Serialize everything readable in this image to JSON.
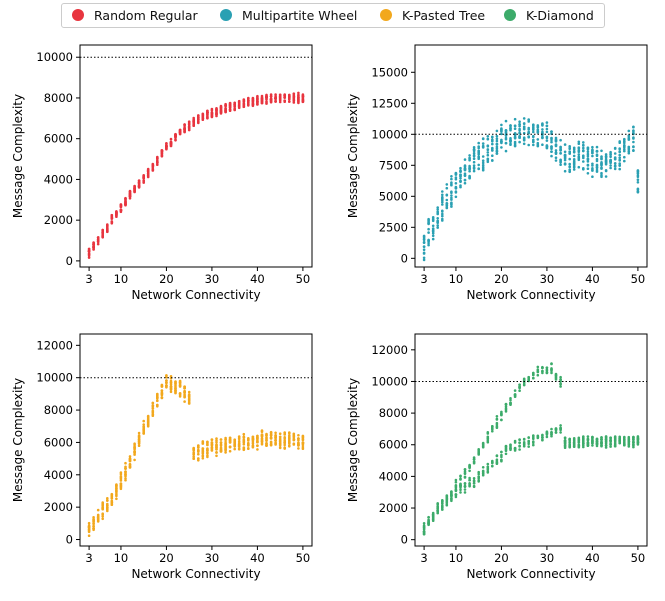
{
  "legend": [
    {
      "label": "Random Regular",
      "color": "#e8353f"
    },
    {
      "label": "Multipartite Wheel",
      "color": "#2aa0b3"
    },
    {
      "label": "K-Pasted Tree",
      "color": "#f2a81d"
    },
    {
      "label": "K-Diamond",
      "color": "#3cab6a"
    }
  ],
  "chart_data": [
    {
      "type": "scatter",
      "series_name": "Random Regular",
      "color": "#e8353f",
      "xlabel": "Network Connectivity",
      "ylabel": "Message Complexity",
      "xticks": [
        3,
        10,
        20,
        30,
        40,
        50
      ],
      "yticks": [
        0,
        2000,
        4000,
        6000,
        8000,
        10000
      ],
      "xlim": [
        1,
        52
      ],
      "ylim": [
        -300,
        10600
      ],
      "reference_line": 10000,
      "trend": [
        [
          3,
          400
        ],
        [
          5,
          1000
        ],
        [
          8,
          2000
        ],
        [
          12,
          3200
        ],
        [
          16,
          4300
        ],
        [
          20,
          5600
        ],
        [
          24,
          6500
        ],
        [
          28,
          7100
        ],
        [
          33,
          7500
        ],
        [
          38,
          7800
        ],
        [
          44,
          8000
        ],
        [
          50,
          8000
        ]
      ],
      "spread": 250
    },
    {
      "type": "scatter",
      "series_name": "Multipartite Wheel",
      "color": "#2aa0b3",
      "xlabel": "Network Connectivity",
      "ylabel": "Message Complexity",
      "xticks": [
        3,
        10,
        20,
        30,
        40,
        50
      ],
      "yticks": [
        0,
        2500,
        5000,
        7500,
        10000,
        12500,
        15000
      ],
      "xlim": [
        1,
        52
      ],
      "ylim": [
        -700,
        17200
      ],
      "reference_line": 10000,
      "trend": [
        [
          3,
          1000
        ],
        [
          6,
          3500
        ],
        [
          10,
          6000
        ],
        [
          14,
          7800
        ],
        [
          18,
          9000
        ],
        [
          22,
          10000
        ],
        [
          26,
          10200
        ],
        [
          30,
          9800
        ],
        [
          34,
          8200
        ],
        [
          38,
          8200
        ],
        [
          42,
          7600
        ],
        [
          46,
          8500
        ],
        [
          49,
          9400
        ],
        [
          50,
          6200
        ]
      ],
      "spread": 1400
    },
    {
      "type": "scatter",
      "series_name": "K-Pasted Tree",
      "color": "#f2a81d",
      "xlabel": "Network Connectivity",
      "ylabel": "Message Complexity",
      "xticks": [
        3,
        10,
        20,
        30,
        40,
        50
      ],
      "yticks": [
        0,
        2000,
        4000,
        6000,
        8000,
        10000,
        12000
      ],
      "xlim": [
        1,
        52
      ],
      "ylim": [
        -400,
        12700
      ],
      "reference_line": 10000,
      "trend": [
        [
          3,
          500
        ],
        [
          6,
          1800
        ],
        [
          9,
          3000
        ],
        [
          12,
          4800
        ],
        [
          15,
          6800
        ],
        [
          18,
          8600
        ],
        [
          20,
          9800
        ],
        [
          23,
          9300
        ],
        [
          25,
          8800
        ],
        [
          26,
          5300
        ],
        [
          30,
          5700
        ],
        [
          36,
          6000
        ],
        [
          42,
          6200
        ],
        [
          50,
          6100
        ]
      ],
      "spread": 600
    },
    {
      "type": "scatter",
      "series_name": "K-Diamond",
      "color": "#3cab6a",
      "xlabel": "Network Connectivity",
      "ylabel": "Message Complexity",
      "xticks": [
        3,
        10,
        20,
        30,
        40,
        50
      ],
      "yticks": [
        0,
        2000,
        4000,
        6000,
        8000,
        10000,
        12000
      ],
      "xlim": [
        1,
        52
      ],
      "ylim": [
        -400,
        13000
      ],
      "reference_line": 10000,
      "trend": [
        [
          3,
          700
        ],
        [
          6,
          2000
        ],
        [
          10,
          3000
        ],
        [
          14,
          3700
        ],
        [
          18,
          4800
        ],
        [
          22,
          5800
        ],
        [
          26,
          6200
        ],
        [
          30,
          6700
        ],
        [
          33,
          7000
        ],
        [
          34,
          6100
        ],
        [
          40,
          6200
        ],
        [
          50,
          6200
        ]
      ],
      "trend_upper": [
        [
          10,
          3400
        ],
        [
          14,
          5000
        ],
        [
          18,
          7000
        ],
        [
          22,
          8800
        ],
        [
          25,
          10000
        ],
        [
          28,
          10600
        ],
        [
          31,
          10800
        ],
        [
          33,
          10000
        ]
      ],
      "spread": 400
    }
  ]
}
